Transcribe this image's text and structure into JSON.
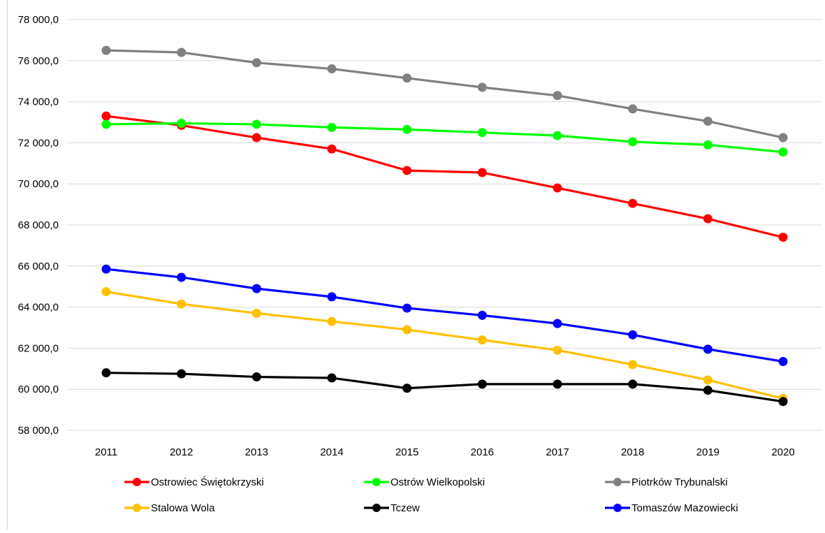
{
  "chart_data": {
    "type": "line",
    "title": "",
    "xlabel": "",
    "ylabel": "",
    "categories": [
      "2011",
      "2012",
      "2013",
      "2014",
      "2015",
      "2016",
      "2017",
      "2018",
      "2019",
      "2020"
    ],
    "ylim": [
      58000,
      78000
    ],
    "y_ticks": [
      58000,
      60000,
      62000,
      64000,
      66000,
      68000,
      70000,
      72000,
      74000,
      76000,
      78000
    ],
    "y_tick_labels": [
      "58 000,0",
      "60 000,0",
      "62 000,0",
      "64 000,0",
      "66 000,0",
      "68 000,0",
      "70 000,0",
      "72 000,0",
      "74 000,0",
      "76 000,0",
      "78 000,0"
    ],
    "grid": true,
    "legend_position": "bottom",
    "series": [
      {
        "name": "Ostrowiec Świętokrzyski",
        "color": "#ff0000",
        "values": [
          73300,
          72850,
          72250,
          71700,
          70650,
          70550,
          69800,
          69050,
          68300,
          67400
        ]
      },
      {
        "name": "Ostrów Wielkopolski",
        "color": "#00ff00",
        "values": [
          72900,
          72950,
          72900,
          72750,
          72650,
          72500,
          72350,
          72050,
          71900,
          71550
        ]
      },
      {
        "name": "Piotrków Trybunalski",
        "color": "#808080",
        "values": [
          76500,
          76400,
          75900,
          75600,
          75150,
          74700,
          74300,
          73650,
          73050,
          72250
        ]
      },
      {
        "name": "Stalowa Wola",
        "color": "#ffc000",
        "values": [
          64750,
          64150,
          63700,
          63300,
          62900,
          62400,
          61900,
          61200,
          60450,
          59550
        ]
      },
      {
        "name": "Tczew",
        "color": "#000000",
        "values": [
          60800,
          60750,
          60600,
          60550,
          60050,
          60250,
          60250,
          60250,
          59950,
          59400
        ]
      },
      {
        "name": "Tomaszów Mazowiecki",
        "color": "#0000ff",
        "values": [
          65850,
          65450,
          64900,
          64500,
          63950,
          63600,
          63200,
          62650,
          61950,
          61350
        ]
      }
    ]
  }
}
